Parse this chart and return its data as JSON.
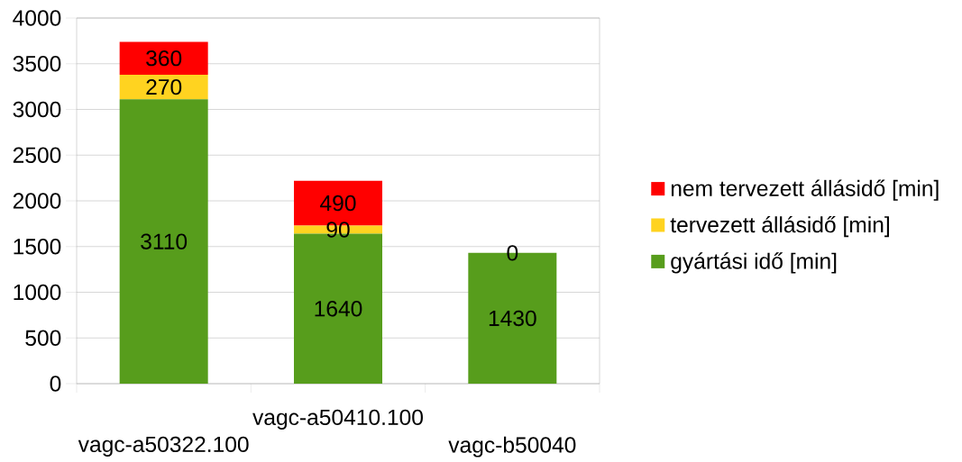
{
  "chart_data": {
    "type": "bar",
    "stacked": true,
    "categories": [
      "vagc-a50322.100",
      "vagc-a50410.100",
      "vagc-b50040"
    ],
    "series": [
      {
        "name": "gyártási idő [min]",
        "color": "#579d1c",
        "values": [
          3110,
          1640,
          1430
        ],
        "value_labels": [
          "3110",
          "1640",
          "1430"
        ]
      },
      {
        "name": "tervezett állásidő [min]",
        "color": "#ffd320",
        "values": [
          270,
          90,
          0
        ],
        "value_labels": [
          "270",
          "90",
          "0"
        ]
      },
      {
        "name": "nem tervezett állásidő [min]",
        "color": "#ff0000",
        "values": [
          360,
          490,
          0
        ],
        "value_labels": [
          "360",
          "490",
          null
        ]
      }
    ],
    "ylim": [
      0,
      4000
    ],
    "yticks": [
      0,
      500,
      1000,
      1500,
      2000,
      2500,
      3000,
      3500,
      4000
    ],
    "grid": "y",
    "legend": "right"
  }
}
